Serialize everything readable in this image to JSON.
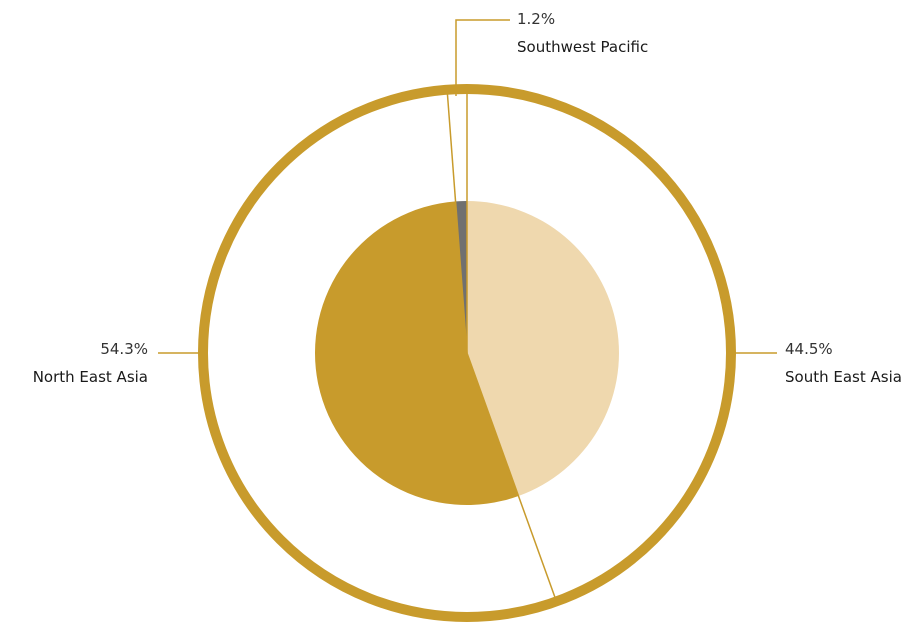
{
  "chart_data": {
    "type": "pie",
    "title": "",
    "slices": [
      {
        "label": "South East Asia",
        "value": 44.5,
        "value_label": "44.5%",
        "color": "#efd8ae"
      },
      {
        "label": "North East Asia",
        "value": 54.3,
        "value_label": "54.3%",
        "color": "#c89b2c"
      },
      {
        "label": "Southwest Pacific",
        "value": 1.2,
        "value_label": "1.2%",
        "color": "#707070"
      }
    ],
    "start_angle_deg": 0,
    "direction": "clockwise",
    "outer_ring": true,
    "accent_color": "#c89b2c",
    "leader_line_color": "#c89b2c"
  }
}
